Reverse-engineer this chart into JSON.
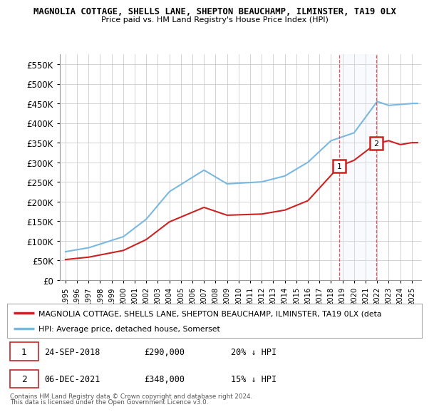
{
  "title": "MAGNOLIA COTTAGE, SHELLS LANE, SHEPTON BEAUCHAMP, ILMINSTER, TA19 0LX",
  "subtitle": "Price paid vs. HM Land Registry's House Price Index (HPI)",
  "ylim": [
    0,
    575000
  ],
  "yticks": [
    0,
    50000,
    100000,
    150000,
    200000,
    250000,
    300000,
    350000,
    400000,
    450000,
    500000,
    550000
  ],
  "xlim_start": 1994.5,
  "xlim_end": 2025.8,
  "purchase1": {
    "date_label": "24-SEP-2018",
    "year": 2018.73,
    "price": 290000,
    "label": "1",
    "pct": "20%"
  },
  "purchase2": {
    "date_label": "06-DEC-2021",
    "year": 2021.92,
    "price": 348000,
    "label": "2",
    "pct": "15%"
  },
  "hpi_color": "#7ab8e0",
  "property_color": "#cc2222",
  "shade_color": "#dce8f5",
  "legend_property": "MAGNOLIA COTTAGE, SHELLS LANE, SHEPTON BEAUCHAMP, ILMINSTER, TA19 0LX (deta",
  "legend_hpi": "HPI: Average price, detached house, Somerset",
  "footnote": "Contains HM Land Registry data © Crown copyright and database right 2024.\nThis data is licensed under the Open Government Licence v3.0.",
  "background_color": "#ffffff",
  "grid_color": "#cccccc",
  "hpi_breakpoints": [
    1995,
    1997,
    2000,
    2002,
    2004,
    2007,
    2009,
    2012,
    2014,
    2016,
    2018,
    2020,
    2021,
    2022,
    2023,
    2025
  ],
  "hpi_values": [
    72000,
    82000,
    110000,
    155000,
    225000,
    280000,
    245000,
    250000,
    265000,
    300000,
    355000,
    375000,
    415000,
    455000,
    445000,
    450000
  ],
  "prop_breakpoints": [
    1995,
    1997,
    2000,
    2002,
    2004,
    2007,
    2009,
    2012,
    2014,
    2016,
    2018.73,
    2020,
    2021.92,
    2023,
    2024,
    2025
  ],
  "prop_values": [
    52000,
    58000,
    75000,
    103000,
    148000,
    185000,
    165000,
    168000,
    178000,
    202000,
    290000,
    305000,
    348000,
    355000,
    345000,
    350000
  ]
}
